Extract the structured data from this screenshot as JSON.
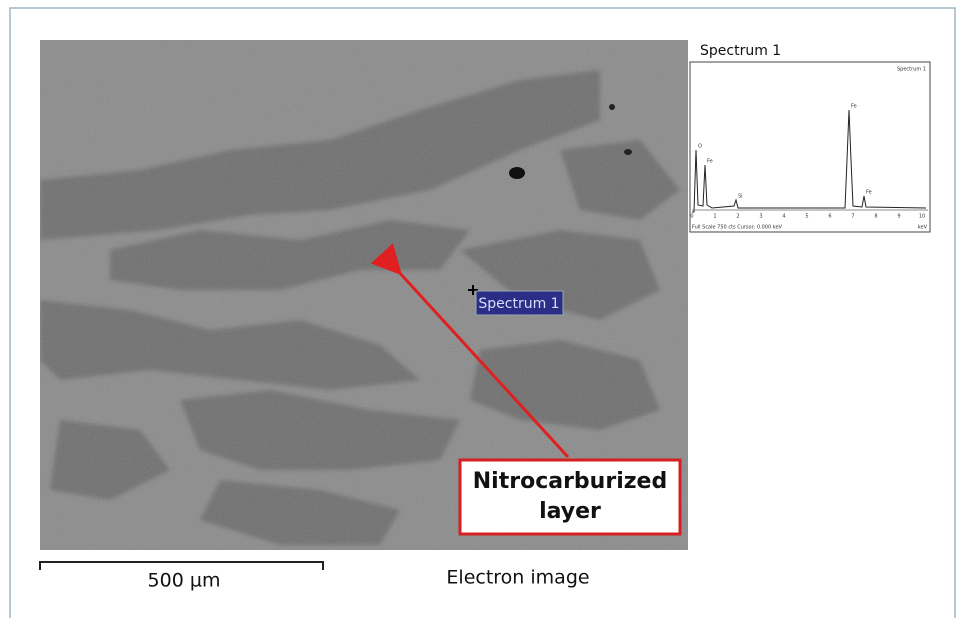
{
  "figure": {
    "spectrum": {
      "title": "Spectrum 1",
      "inner_title": "Spectrum 1",
      "peaks": [
        "O",
        "Fe",
        "Si",
        "Fe",
        "Fe"
      ],
      "xticks": [
        "0",
        "1",
        "2",
        "3",
        "4",
        "5",
        "6",
        "7",
        "8",
        "9",
        "10"
      ],
      "footer": "Full Scale 750 cts  Cursor: 0.000 keV",
      "unit": "keV"
    },
    "image": {
      "spot_label": "Spectrum 1",
      "callout": [
        "Nitrocarburized",
        "layer"
      ],
      "scale_bar": "500 µm",
      "caption": "Electron image"
    }
  }
}
